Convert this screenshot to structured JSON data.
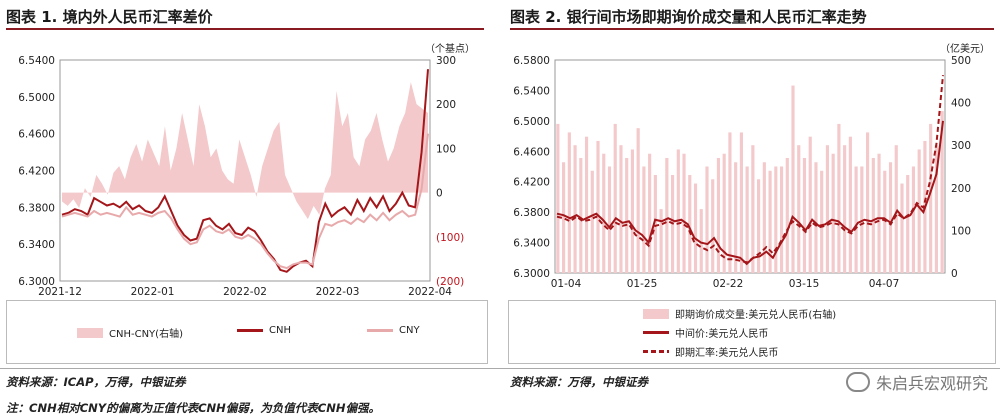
{
  "left": {
    "title": "图表 1. 境内外人民币汇率差价",
    "source": "资料来源：ICAP，万得，中银证券",
    "chart_data": {
      "type": "line",
      "x_labels": [
        "2021-12",
        "2022-01",
        "2022-02",
        "2022-03",
        "2022-04"
      ],
      "ylim_left": [
        6.3,
        6.54
      ],
      "ylim_right": [
        -200,
        300
      ],
      "yticks_left": [
        "6.5400",
        "6.5000",
        "6.4600",
        "6.4200",
        "6.3800",
        "6.3400",
        "6.3000"
      ],
      "yticks_right": [
        "300",
        "200",
        "100",
        "0",
        "(100)",
        "(200)"
      ],
      "right_unit": "（个基点）",
      "series": [
        {
          "name": "CNH-CNY(右轴)",
          "type": "area",
          "color": "#f3c9cb",
          "values": [
            -20,
            -30,
            -15,
            -35,
            10,
            -10,
            40,
            20,
            -5,
            45,
            60,
            30,
            80,
            110,
            70,
            120,
            90,
            60,
            150,
            50,
            100,
            180,
            120,
            60,
            200,
            150,
            80,
            100,
            50,
            30,
            20,
            120,
            80,
            40,
            -10,
            60,
            100,
            140,
            160,
            40,
            10,
            -20,
            -40,
            -60,
            -30,
            -50,
            10,
            40,
            230,
            150,
            180,
            80,
            60,
            120,
            140,
            180,
            120,
            70,
            100,
            150,
            180,
            250,
            200,
            190,
            180
          ]
        },
        {
          "name": "CNH",
          "type": "line",
          "color": "#a4161a",
          "values": [
            6.372,
            6.374,
            6.378,
            6.376,
            6.372,
            6.39,
            6.386,
            6.382,
            6.384,
            6.38,
            6.386,
            6.378,
            6.382,
            6.376,
            6.374,
            6.38,
            6.392,
            6.376,
            6.36,
            6.35,
            6.344,
            6.346,
            6.366,
            6.368,
            6.36,
            6.356,
            6.362,
            6.352,
            6.35,
            6.358,
            6.354,
            6.344,
            6.332,
            6.324,
            6.312,
            6.31,
            6.316,
            6.32,
            6.322,
            6.316,
            6.364,
            6.384,
            6.37,
            6.376,
            6.38,
            6.372,
            6.388,
            6.376,
            6.39,
            6.38,
            6.392,
            6.376,
            6.384,
            6.396,
            6.382,
            6.38,
            6.44,
            6.53
          ]
        },
        {
          "name": "CNY",
          "type": "line",
          "color": "#e8a9ab",
          "values": [
            6.37,
            6.372,
            6.374,
            6.372,
            6.37,
            6.376,
            6.372,
            6.374,
            6.372,
            6.37,
            6.38,
            6.372,
            6.374,
            6.372,
            6.37,
            6.374,
            6.376,
            6.368,
            6.356,
            6.346,
            6.34,
            6.342,
            6.356,
            6.36,
            6.354,
            6.352,
            6.356,
            6.348,
            6.346,
            6.35,
            6.346,
            6.34,
            6.33,
            6.322,
            6.316,
            6.314,
            6.318,
            6.32,
            6.32,
            6.318,
            6.346,
            6.362,
            6.36,
            6.364,
            6.366,
            6.362,
            6.368,
            6.364,
            6.372,
            6.366,
            6.374,
            6.366,
            6.372,
            6.376,
            6.37,
            6.372,
            6.4,
            6.46
          ]
        }
      ],
      "legend": [
        "CNH-CNY(右轴)",
        "CNH",
        "CNY"
      ]
    }
  },
  "right": {
    "title": "图表 2. 银行间市场即期询价成交量和人民币汇率走势",
    "source": "资料来源：万得，中银证券",
    "chart_data": {
      "type": "bar",
      "x_labels": [
        "01-04",
        "01-25",
        "02-22",
        "03-15",
        "04-07"
      ],
      "ylim_left": [
        6.3,
        6.58
      ],
      "ylim_right": [
        0,
        500
      ],
      "yticks_left": [
        "6.5800",
        "6.5400",
        "6.5000",
        "6.4600",
        "6.4200",
        "6.3800",
        "6.3400",
        "6.3000"
      ],
      "yticks_right": [
        "500",
        "400",
        "300",
        "200",
        "100",
        "0"
      ],
      "right_unit": "（亿美元）",
      "series": [
        {
          "name": "即期询价成交量:美元兑人民币(右轴)",
          "type": "bar",
          "color": "#f3c9cb",
          "values": [
            350,
            260,
            330,
            300,
            270,
            320,
            240,
            310,
            280,
            250,
            350,
            300,
            270,
            290,
            340,
            250,
            280,
            230,
            150,
            270,
            230,
            290,
            280,
            230,
            210,
            150,
            250,
            220,
            270,
            280,
            330,
            260,
            330,
            250,
            300,
            220,
            260,
            240,
            250,
            250,
            270,
            440,
            300,
            270,
            320,
            260,
            240,
            300,
            280,
            350,
            300,
            320,
            250,
            250,
            330,
            270,
            280,
            240,
            260,
            300,
            210,
            230,
            250,
            290,
            310,
            350,
            300,
            380
          ]
        },
        {
          "name": "中间价:美元兑人民币",
          "type": "line",
          "color": "#a4161a",
          "values": [
            6.378,
            6.376,
            6.372,
            6.376,
            6.37,
            6.374,
            6.378,
            6.37,
            6.36,
            6.372,
            6.366,
            6.368,
            6.356,
            6.35,
            6.34,
            6.37,
            6.368,
            6.372,
            6.368,
            6.37,
            6.364,
            6.346,
            6.34,
            6.338,
            6.346,
            6.332,
            6.324,
            6.322,
            6.32,
            6.312,
            6.32,
            6.322,
            6.328,
            6.32,
            6.336,
            6.35,
            6.374,
            6.366,
            6.356,
            6.37,
            6.362,
            6.364,
            6.37,
            6.368,
            6.36,
            6.354,
            6.366,
            6.37,
            6.368,
            6.372,
            6.372,
            6.366,
            6.382,
            6.372,
            6.376,
            6.39,
            6.38,
            6.404,
            6.43,
            6.5
          ]
        },
        {
          "name": "即期汇率:美元兑人民币",
          "type": "line",
          "dashed": true,
          "color": "#a4161a",
          "values": [
            6.374,
            6.372,
            6.368,
            6.374,
            6.368,
            6.37,
            6.374,
            6.364,
            6.356,
            6.366,
            6.362,
            6.364,
            6.35,
            6.344,
            6.336,
            6.362,
            6.364,
            6.368,
            6.364,
            6.366,
            6.36,
            6.34,
            6.334,
            6.33,
            6.336,
            6.324,
            6.318,
            6.318,
            6.316,
            6.314,
            6.32,
            6.326,
            6.334,
            6.326,
            6.338,
            6.354,
            6.368,
            6.362,
            6.354,
            6.366,
            6.36,
            6.362,
            6.366,
            6.364,
            6.356,
            6.352,
            6.362,
            6.366,
            6.364,
            6.368,
            6.37,
            6.364,
            6.378,
            6.372,
            6.378,
            6.392,
            6.386,
            6.42,
            6.47,
            6.56
          ]
        }
      ],
      "legend": [
        "即期询价成交量:美元兑人民币(右轴)",
        "中间价:美元兑人民币",
        "即期汇率:美元兑人民币"
      ]
    }
  },
  "note": "注：CNH相对CNY的偏离为正值代表CNH偏弱，为负值代表CNH偏强。",
  "watermark": "朱启兵宏观研究"
}
